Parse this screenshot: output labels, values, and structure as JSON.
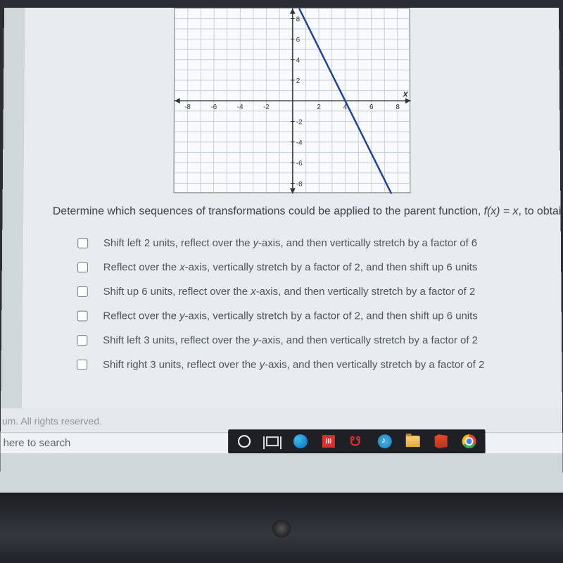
{
  "question": {
    "prefix": "Determine which sequences of transformations could be applied to the parent function, ",
    "fx": "f(x)",
    "mid": " = ",
    "xvar": "x",
    "suffix": ", to obtain the"
  },
  "options": [
    {
      "pre": "Shift left 2 units, reflect over the ",
      "axis": "y",
      "post": "-axis, and then vertically stretch by a factor of 6"
    },
    {
      "pre": "Reflect over the ",
      "axis": "x",
      "post": "-axis, vertically stretch by a factor of 2, and then shift up 6 units"
    },
    {
      "pre": "Shift up 6 units, reflect over the ",
      "axis": "x",
      "post": "-axis, and then vertically stretch by a factor of 2"
    },
    {
      "pre": "Reflect over the ",
      "axis": "y",
      "post": "-axis, vertically stretch by a factor of 2, and then shift up 6 units"
    },
    {
      "pre": "Shift left 3 units, reflect over the ",
      "axis": "y",
      "post": "-axis, and then vertically stretch by a factor of 2"
    },
    {
      "pre": "Shift right 3 units, reflect over the ",
      "axis": "y",
      "post": "-axis, and then vertically stretch by a factor of 2"
    }
  ],
  "graph": {
    "type": "line",
    "xlim": [
      -9,
      9
    ],
    "ylim": [
      -9,
      9
    ],
    "xticks": [
      -8,
      -6,
      -4,
      -2,
      2,
      4,
      6,
      8
    ],
    "yticks_pos": [
      2,
      4,
      6,
      8
    ],
    "yticks_neg": [
      -2,
      -4,
      -6,
      -8
    ],
    "x_label": "x",
    "line_points": {
      "x1": 0.5,
      "y1": 9,
      "x2": 7.5,
      "y2": -9
    },
    "grid_color": "#b6c0c5",
    "axis_color": "#2d3438",
    "line_color": "#1b3f9c",
    "line_width": 2.5,
    "bg_color": "#f8fafc",
    "tick_font_size": 10,
    "axis_label_font_size": 13
  },
  "footer": "um. All rights reserved.",
  "search": "here to search",
  "taskbar_bg": "#1e2026",
  "colors": {
    "panel_bg": "#e7ecee",
    "text": "#3b4146",
    "option_text": "#4a5258"
  }
}
